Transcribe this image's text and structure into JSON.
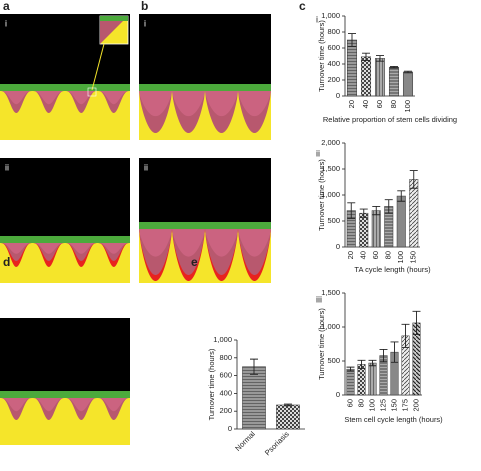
{
  "panel_labels": [
    "a",
    "b",
    "c",
    "d",
    "e"
  ],
  "image_sublabels": [
    "i",
    "ii",
    "i",
    "ii"
  ],
  "chart_data": [
    {
      "type": "bar",
      "panel": "i",
      "ylabel": "Turnover time (hours)",
      "xlabel": "Relative proportion of stem cells dividing",
      "categories": [
        "20",
        "40",
        "60",
        "80",
        "100"
      ],
      "values": [
        700,
        490,
        470,
        360,
        300
      ],
      "errors": [
        80,
        45,
        35,
        10,
        10
      ],
      "ylim": [
        0,
        1000
      ],
      "yticks": [
        0,
        200,
        400,
        600,
        800,
        {
          "value": 1000,
          "label": "1,000"
        }
      ]
    },
    {
      "type": "bar",
      "panel": "ii",
      "ylabel": "Turnover time (hours)",
      "xlabel": "TA cycle length (hours)",
      "categories": [
        "20",
        "40",
        "60",
        "80",
        "100",
        "150"
      ],
      "values": [
        700,
        650,
        700,
        780,
        980,
        1300
      ],
      "errors": [
        150,
        80,
        80,
        130,
        100,
        170
      ],
      "ylim": [
        0,
        2000
      ],
      "yticks": [
        0,
        500,
        {
          "value": 1000,
          "label": "1,000"
        },
        {
          "value": 1500,
          "label": "1,500"
        },
        {
          "value": 2000,
          "label": "2,000"
        }
      ]
    },
    {
      "type": "bar",
      "panel": "iii",
      "ylabel": "Turnover time (hours)",
      "xlabel": "Stem cell cycle length (hours)",
      "categories": [
        "60",
        "80",
        "100",
        "125",
        "150",
        "175",
        "200"
      ],
      "values": [
        380,
        450,
        470,
        580,
        630,
        870,
        1060
      ],
      "errors": [
        30,
        60,
        40,
        90,
        150,
        170,
        170
      ],
      "ylim": [
        0,
        1500
      ],
      "yticks": [
        0,
        500,
        {
          "value": 1000,
          "label": "1,000"
        },
        {
          "value": 1500,
          "label": "1,500"
        }
      ]
    },
    {
      "type": "bar",
      "ylabel": "Turnover time (hours)",
      "categories": [
        "Normal",
        "Psoriasis"
      ],
      "values": [
        700,
        270
      ],
      "errors": [
        85,
        10
      ],
      "ylim": [
        0,
        1000
      ],
      "yticks": [
        0,
        200,
        400,
        600,
        800,
        {
          "value": 1000,
          "label": "1,000"
        }
      ]
    }
  ]
}
